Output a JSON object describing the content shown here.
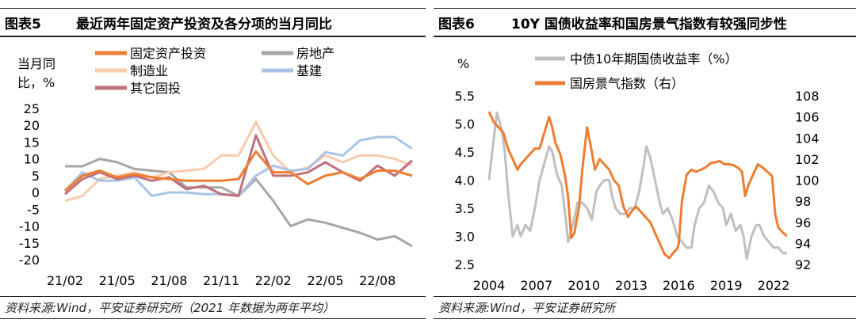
{
  "left": {
    "fig": "图表5",
    "title": "最近两年固定资产投资及各分项的当月同比",
    "source": "资料来源:Wind，平安证券研究所（2021 年数据为两年平均）",
    "chart_data": {
      "type": "line",
      "ylabel_lines": [
        "当月同",
        "比，%"
      ],
      "ylim": [
        -20,
        25
      ],
      "yticks": [
        25,
        20,
        15,
        10,
        5,
        0,
        -5,
        -10,
        -15,
        -20
      ],
      "categories": [
        "21/02",
        "21/03",
        "21/04",
        "21/05",
        "21/06",
        "21/07",
        "21/08",
        "21/09",
        "21/10",
        "21/11",
        "21/12",
        "22/01",
        "22/02",
        "22/03",
        "22/04",
        "22/05",
        "22/06",
        "22/07",
        "22/08",
        "22/09",
        "22/10"
      ],
      "x_ticklabels": [
        {
          "i": 0,
          "label": "21/02"
        },
        {
          "i": 3,
          "label": "21/05"
        },
        {
          "i": 6,
          "label": "21/08"
        },
        {
          "i": 9,
          "label": "21/11"
        },
        {
          "i": 12,
          "label": "22/02"
        },
        {
          "i": 15,
          "label": "22/05"
        },
        {
          "i": 18,
          "label": "22/08"
        }
      ],
      "grid": false,
      "series": [
        {
          "name": "固定资产投资",
          "color": "#ED7D31",
          "width": 3,
          "values": [
            0.5,
            5,
            6.5,
            4.5,
            5.5,
            4.5,
            4,
            3.5,
            3.5,
            3.5,
            4,
            12.2,
            6,
            6,
            2.5,
            5,
            6,
            4,
            6.5,
            6.5,
            5
          ]
        },
        {
          "name": "房地产",
          "color": "#A6A6A6",
          "width": 3,
          "values": [
            7.8,
            7.8,
            10,
            9,
            7,
            6.5,
            6,
            1.5,
            1.5,
            1.5,
            -1,
            4,
            -2.5,
            -10,
            -8,
            -9,
            -10.5,
            -12,
            -14,
            -13,
            -16
          ]
        },
        {
          "name": "制造业",
          "color": "#F8CBAD",
          "width": 3,
          "values": [
            -2.5,
            -1,
            4,
            5,
            6,
            4.5,
            6,
            6.5,
            7,
            11,
            11,
            21,
            11,
            6,
            7.5,
            11,
            9,
            11,
            11,
            10,
            8
          ]
        },
        {
          "name": "基建",
          "color": "#A9C4E6",
          "width": 3,
          "values": [
            0.5,
            6,
            3.5,
            3.5,
            4.5,
            -1,
            0,
            0,
            -0.5,
            -0.5,
            -1,
            5,
            8,
            6.5,
            7,
            12,
            11,
            15.5,
            16.5,
            16.5,
            13
          ]
        },
        {
          "name": "其它固投",
          "color": "#C0707A",
          "width": 3,
          "values": [
            -0.5,
            4,
            6,
            4,
            5,
            3.5,
            4.5,
            1,
            2,
            -0.5,
            -1,
            17,
            5,
            5,
            6,
            9,
            6,
            3.5,
            8,
            5,
            9.5
          ]
        }
      ],
      "legend": "top"
    }
  },
  "right": {
    "fig": "图表6",
    "title": "10Y 国债收益率和国房景气指数有较强同步性",
    "source": "资料来源:Wind，平安证券研究所",
    "chart_data": {
      "type": "line",
      "ylabel_left": "%",
      "ylim_left": [
        2.5,
        5.5
      ],
      "yticks_left": [
        "5.5",
        "5.0",
        "4.5",
        "4.0",
        "3.5",
        "3.0",
        "2.5"
      ],
      "ylim_right": [
        92,
        108
      ],
      "yticks_right": [
        "108",
        "106",
        "104",
        "102",
        "100",
        "98",
        "96",
        "94",
        "92"
      ],
      "xlim": [
        2004,
        2022.9
      ],
      "xticks": [
        "2004",
        "2007",
        "2010",
        "2013",
        "2016",
        "2019",
        "2022"
      ],
      "grid": false,
      "series": [
        {
          "name": "中债10年期国债收益率（%）",
          "axis": "left",
          "color": "#BFBFBF",
          "width": 3,
          "x": [
            2004.0,
            2004.2,
            2004.5,
            2004.8,
            2005.0,
            2005.2,
            2005.5,
            2005.8,
            2006.0,
            2006.3,
            2006.6,
            2006.9,
            2007.2,
            2007.5,
            2007.8,
            2008.0,
            2008.3,
            2008.6,
            2008.9,
            2009.0,
            2009.3,
            2009.6,
            2009.9,
            2010.2,
            2010.5,
            2010.8,
            2011.0,
            2011.3,
            2011.6,
            2011.8,
            2012.0,
            2012.3,
            2012.6,
            2012.9,
            2013.2,
            2013.5,
            2013.8,
            2013.95,
            2014.2,
            2014.5,
            2014.8,
            2015.0,
            2015.3,
            2015.6,
            2015.9,
            2016.2,
            2016.5,
            2016.8,
            2017.0,
            2017.3,
            2017.6,
            2017.9,
            2018.2,
            2018.5,
            2018.8,
            2019.0,
            2019.3,
            2019.6,
            2019.9,
            2020.1,
            2020.3,
            2020.6,
            2020.9,
            2021.1,
            2021.4,
            2021.7,
            2022.0,
            2022.3,
            2022.6,
            2022.85
          ],
          "y": [
            4.0,
            4.5,
            5.2,
            4.9,
            4.5,
            3.8,
            3.0,
            3.2,
            3.0,
            3.2,
            3.1,
            3.5,
            4.0,
            4.3,
            4.6,
            4.5,
            4.1,
            3.9,
            3.2,
            2.9,
            3.2,
            3.6,
            3.6,
            3.5,
            3.3,
            3.8,
            3.9,
            4.0,
            4.0,
            3.7,
            3.5,
            3.4,
            3.4,
            3.5,
            3.5,
            3.8,
            4.3,
            4.6,
            4.4,
            4.0,
            3.6,
            3.4,
            3.5,
            3.3,
            3.0,
            2.9,
            2.8,
            2.8,
            3.2,
            3.5,
            3.6,
            3.9,
            3.8,
            3.6,
            3.5,
            3.2,
            3.4,
            3.1,
            3.2,
            3.0,
            2.6,
            3.0,
            3.2,
            3.2,
            3.0,
            2.9,
            2.8,
            2.8,
            2.7,
            2.7
          ]
        },
        {
          "name": "国房景气指数（右）",
          "axis": "right",
          "color": "#ED7D31",
          "width": 3,
          "x": [
            2004.0,
            2004.3,
            2004.6,
            2004.9,
            2005.2,
            2005.5,
            2005.8,
            2006.0,
            2006.3,
            2006.6,
            2006.9,
            2007.2,
            2007.5,
            2007.8,
            2008.0,
            2008.2,
            2008.5,
            2008.8,
            2009.0,
            2009.2,
            2009.4,
            2009.7,
            2009.9,
            2010.2,
            2010.4,
            2010.7,
            2011.0,
            2011.3,
            2011.6,
            2011.9,
            2012.2,
            2012.5,
            2012.8,
            2013.0,
            2013.3,
            2013.6,
            2013.9,
            2014.2,
            2014.5,
            2014.8,
            2015.1,
            2015.4,
            2015.6,
            2015.9,
            2016.0,
            2016.2,
            2016.5,
            2016.8,
            2017.1,
            2017.4,
            2017.7,
            2018.0,
            2018.3,
            2018.6,
            2018.9,
            2019.2,
            2019.5,
            2019.8,
            2020.0,
            2020.2,
            2020.4,
            2020.7,
            2021.0,
            2021.3,
            2021.6,
            2021.9,
            2022.1,
            2022.3,
            2022.6,
            2022.85
          ],
          "y": [
            106.5,
            105.5,
            105.0,
            104.5,
            103.0,
            102.0,
            101.0,
            101.5,
            102.0,
            102.5,
            103.0,
            103.0,
            104.5,
            106.0,
            105.0,
            103.5,
            102.5,
            100.5,
            98.5,
            94.5,
            95.0,
            97.5,
            101.0,
            105.0,
            103.5,
            101.0,
            102.0,
            101.5,
            101.0,
            100.0,
            99.5,
            97.5,
            96.5,
            97.0,
            97.5,
            97.0,
            96.5,
            96.0,
            95.0,
            94.0,
            93.0,
            92.6,
            93.0,
            93.5,
            94.0,
            98.0,
            100.5,
            101.0,
            100.8,
            101.0,
            101.2,
            101.6,
            101.7,
            101.8,
            101.5,
            101.5,
            101.4,
            101.1,
            100.8,
            98.5,
            99.5,
            100.5,
            101.5,
            101.2,
            100.8,
            100.4,
            96.8,
            95.5,
            95.0,
            94.7
          ]
        }
      ],
      "legend": "top"
    }
  }
}
